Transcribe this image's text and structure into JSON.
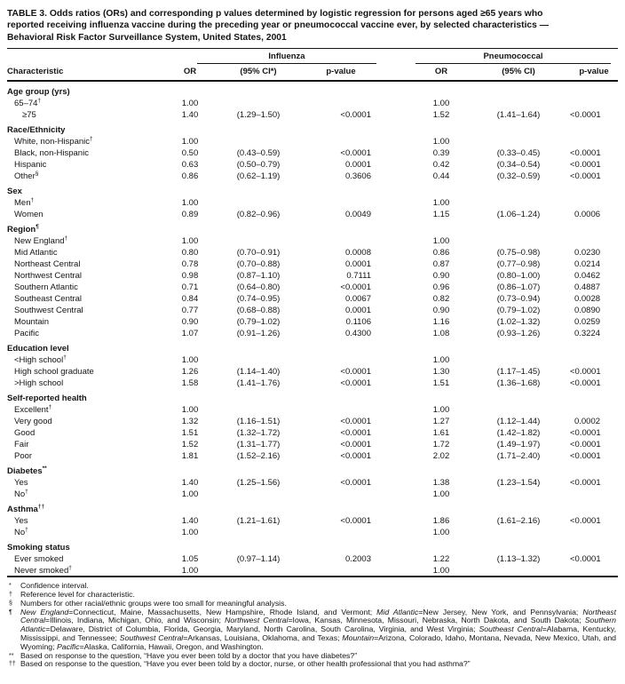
{
  "title": {
    "lines": [
      "TABLE 3. Odds ratios (ORs) and corresponding p values determined by logistic regression for persons aged ≥65 years who",
      "reported receiving influenza vaccine during the preceding year or pneumococcal vaccine ever, by selected characteristics —",
      "Behavioral Risk Factor Surveillance System, United States, 2001"
    ]
  },
  "table": {
    "characteristic_header": "Characteristic",
    "groups": [
      {
        "label": "Influenza",
        "columns": [
          "OR",
          "(95% CI*)",
          "p-value"
        ]
      },
      {
        "label": "Pneumococcal",
        "columns": [
          "OR",
          "(95% CI)",
          "p-value"
        ]
      }
    ],
    "rows": [
      {
        "type": "section",
        "label": "Age group (yrs)",
        "sup": ""
      },
      {
        "type": "data",
        "label": "65–74",
        "sup": "†",
        "indent": 1,
        "cells": [
          "1.00",
          "",
          "",
          "1.00",
          "",
          ""
        ]
      },
      {
        "type": "data",
        "label": "≥75",
        "sup": "",
        "indent": 2,
        "cells": [
          "1.40",
          "(1.29–1.50)",
          "<0.0001",
          "1.52",
          "(1.41–1.64)",
          "<0.0001"
        ]
      },
      {
        "type": "section",
        "label": "Race/Ethnicity",
        "sup": ""
      },
      {
        "type": "data",
        "label": "White, non-Hispanic",
        "sup": "†",
        "indent": 1,
        "cells": [
          "1.00",
          "",
          "",
          "1.00",
          "",
          ""
        ]
      },
      {
        "type": "data",
        "label": "Black, non-Hispanic",
        "sup": "",
        "indent": 1,
        "cells": [
          "0.50",
          "(0.43–0.59)",
          "<0.0001",
          "0.39",
          "(0.33–0.45)",
          "<0.0001"
        ]
      },
      {
        "type": "data",
        "label": "Hispanic",
        "sup": "",
        "indent": 1,
        "cells": [
          "0.63",
          "(0.50–0.79)",
          "0.0001",
          "0.42",
          "(0.34–0.54)",
          "<0.0001"
        ]
      },
      {
        "type": "data",
        "label": "Other",
        "sup": "§",
        "indent": 1,
        "cells": [
          "0.86",
          "(0.62–1.19)",
          "0.3606",
          "0.44",
          "(0.32–0.59)",
          "<0.0001"
        ]
      },
      {
        "type": "section",
        "label": "Sex",
        "sup": ""
      },
      {
        "type": "data",
        "label": "Men",
        "sup": "†",
        "indent": 1,
        "cells": [
          "1.00",
          "",
          "",
          "1.00",
          "",
          ""
        ]
      },
      {
        "type": "data",
        "label": "Women",
        "sup": "",
        "indent": 1,
        "cells": [
          "0.89",
          "(0.82–0.96)",
          "0.0049",
          "1.15",
          "(1.06–1.24)",
          "0.0006"
        ]
      },
      {
        "type": "section",
        "label": "Region",
        "sup": "¶"
      },
      {
        "type": "data",
        "label": "New England",
        "sup": "†",
        "indent": 1,
        "cells": [
          "1.00",
          "",
          "",
          "1.00",
          "",
          ""
        ]
      },
      {
        "type": "data",
        "label": "Mid Atlantic",
        "sup": "",
        "indent": 1,
        "cells": [
          "0.80",
          "(0.70–0.91)",
          "0.0008",
          "0.86",
          "(0.75–0.98)",
          "0.0230"
        ]
      },
      {
        "type": "data",
        "label": "Northeast Central",
        "sup": "",
        "indent": 1,
        "cells": [
          "0.78",
          "(0.70–0.88)",
          "0.0001",
          "0.87",
          "(0.77–0.98)",
          "0.0214"
        ]
      },
      {
        "type": "data",
        "label": "Northwest Central",
        "sup": "",
        "indent": 1,
        "cells": [
          "0.98",
          "(0.87–1.10)",
          "0.7111",
          "0.90",
          "(0.80–1.00)",
          "0.0462"
        ]
      },
      {
        "type": "data",
        "label": "Southern Atlantic",
        "sup": "",
        "indent": 1,
        "cells": [
          "0.71",
          "(0.64–0.80)",
          "<0.0001",
          "0.96",
          "(0.86–1.07)",
          "0.4887"
        ]
      },
      {
        "type": "data",
        "label": "Southeast Central",
        "sup": "",
        "indent": 1,
        "cells": [
          "0.84",
          "(0.74–0.95)",
          "0.0067",
          "0.82",
          "(0.73–0.94)",
          "0.0028"
        ]
      },
      {
        "type": "data",
        "label": "Southwest Central",
        "sup": "",
        "indent": 1,
        "cells": [
          "0.77",
          "(0.68–0.88)",
          "0.0001",
          "0.90",
          "(0.79–1.02)",
          "0.0890"
        ]
      },
      {
        "type": "data",
        "label": "Mountain",
        "sup": "",
        "indent": 1,
        "cells": [
          "0.90",
          "(0.79–1.02)",
          "0.1106",
          "1.16",
          "(1.02–1.32)",
          "0.0259"
        ]
      },
      {
        "type": "data",
        "label": "Pacific",
        "sup": "",
        "indent": 1,
        "cells": [
          "1.07",
          "(0.91–1.26)",
          "0.4300",
          "1.08",
          "(0.93–1.26)",
          "0.3224"
        ]
      },
      {
        "type": "section",
        "label": "Education level",
        "sup": ""
      },
      {
        "type": "data",
        "label": "<High school",
        "sup": "†",
        "indent": 1,
        "cells": [
          "1.00",
          "",
          "",
          "1.00",
          "",
          ""
        ]
      },
      {
        "type": "data",
        "label": "High school graduate",
        "sup": "",
        "indent": 1,
        "cells": [
          "1.26",
          "(1.14–1.40)",
          "<0.0001",
          "1.30",
          "(1.17–1.45)",
          "<0.0001"
        ]
      },
      {
        "type": "data",
        "label": ">High school",
        "sup": "",
        "indent": 1,
        "cells": [
          "1.58",
          "(1.41–1.76)",
          "<0.0001",
          "1.51",
          "(1.36–1.68)",
          "<0.0001"
        ]
      },
      {
        "type": "section",
        "label": "Self-reported health",
        "sup": ""
      },
      {
        "type": "data",
        "label": "Excellent",
        "sup": "†",
        "indent": 1,
        "cells": [
          "1.00",
          "",
          "",
          "1.00",
          "",
          ""
        ]
      },
      {
        "type": "data",
        "label": "Very good",
        "sup": "",
        "indent": 1,
        "cells": [
          "1.32",
          "(1.16–1.51)",
          "<0.0001",
          "1.27",
          "(1.12–1.44)",
          "0.0002"
        ]
      },
      {
        "type": "data",
        "label": "Good",
        "sup": "",
        "indent": 1,
        "cells": [
          "1.51",
          "(1.32–1.72)",
          "<0.0001",
          "1.61",
          "(1.42–1.82)",
          "<0.0001"
        ]
      },
      {
        "type": "data",
        "label": "Fair",
        "sup": "",
        "indent": 1,
        "cells": [
          "1.52",
          "(1.31–1.77)",
          "<0.0001",
          "1.72",
          "(1.49–1.97)",
          "<0.0001"
        ]
      },
      {
        "type": "data",
        "label": "Poor",
        "sup": "",
        "indent": 1,
        "cells": [
          "1.81",
          "(1.52–2.16)",
          "<0.0001",
          "2.02",
          "(1.71–2.40)",
          "<0.0001"
        ]
      },
      {
        "type": "section",
        "label": "Diabetes",
        "sup": "**"
      },
      {
        "type": "data",
        "label": "Yes",
        "sup": "",
        "indent": 1,
        "cells": [
          "1.40",
          "(1.25–1.56)",
          "<0.0001",
          "1.38",
          "(1.23–1.54)",
          "<0.0001"
        ]
      },
      {
        "type": "data",
        "label": "No",
        "sup": "†",
        "indent": 1,
        "cells": [
          "1.00",
          "",
          "",
          "1.00",
          "",
          ""
        ]
      },
      {
        "type": "section",
        "label": "Asthma",
        "sup": "††"
      },
      {
        "type": "data",
        "label": "Yes",
        "sup": "",
        "indent": 1,
        "cells": [
          "1.40",
          "(1.21–1.61)",
          "<0.0001",
          "1.86",
          "(1.61–2.16)",
          "<0.0001"
        ]
      },
      {
        "type": "data",
        "label": "No",
        "sup": "†",
        "indent": 1,
        "cells": [
          "1.00",
          "",
          "",
          "1.00",
          "",
          ""
        ]
      },
      {
        "type": "section",
        "label": "Smoking status",
        "sup": ""
      },
      {
        "type": "data",
        "label": "Ever smoked",
        "sup": "",
        "indent": 1,
        "cells": [
          "1.05",
          "(0.97–1.14)",
          "0.2003",
          "1.22",
          "(1.13–1.32)",
          "<0.0001"
        ]
      },
      {
        "type": "data",
        "label": "Never smoked",
        "sup": "†",
        "indent": 1,
        "cells": [
          "1.00",
          "",
          "",
          "1.00",
          "",
          ""
        ]
      }
    ]
  },
  "footnotes": [
    {
      "marker": "*",
      "text": "Confidence interval."
    },
    {
      "marker": "†",
      "text": "Reference level for characteristic."
    },
    {
      "marker": "§",
      "text": "Numbers for other racial/ethnic groups were too small for meaningful analysis."
    },
    {
      "marker": "¶",
      "segments": [
        {
          "t": "New England",
          "i": true
        },
        {
          "t": "=Connecticut, Maine, Massachusetts, New Hampshire, Rhode Island, and Vermont; ",
          "i": false
        },
        {
          "t": "Mid Atlantic",
          "i": true
        },
        {
          "t": "=New Jersey, New York, and Pennsylvania; ",
          "i": false
        },
        {
          "t": "Northeast Central",
          "i": true
        },
        {
          "t": "=Illinois, Indiana, Michigan, Ohio, and Wisconsin; ",
          "i": false
        },
        {
          "t": "Northwest Central",
          "i": true
        },
        {
          "t": "=Iowa, Kansas, Minnesota, Missouri, Nebraska, North Dakota, and South Dakota; ",
          "i": false
        },
        {
          "t": "Southern Atlantic",
          "i": true
        },
        {
          "t": "=Delaware, District of Columbia, Florida, Georgia, Maryland, North Carolina, South Carolina, Virginia, and West Virginia; ",
          "i": false
        },
        {
          "t": "Southeast Central",
          "i": true
        },
        {
          "t": "=Alabama, Kentucky, Mississippi, and Tennessee; ",
          "i": false
        },
        {
          "t": "Southwest Central",
          "i": true
        },
        {
          "t": "=Arkansas, Louisiana, Oklahoma, and Texas; ",
          "i": false
        },
        {
          "t": "Mountain",
          "i": true
        },
        {
          "t": "=Arizona, Colorado, Idaho, Montana, Nevada, New Mexico, Utah, and Wyoming; ",
          "i": false
        },
        {
          "t": "Pacific",
          "i": true
        },
        {
          "t": "=Alaska, California, Hawaii, Oregon, and Washington.",
          "i": false
        }
      ]
    },
    {
      "marker": "**",
      "text": "Based on response to the question, “Have you ever been told by a doctor that you have diabetes?”"
    },
    {
      "marker": "††",
      "text": "Based on response to the question, “Have you ever been told by a doctor, nurse, or other health professional that you had asthma?”"
    }
  ]
}
